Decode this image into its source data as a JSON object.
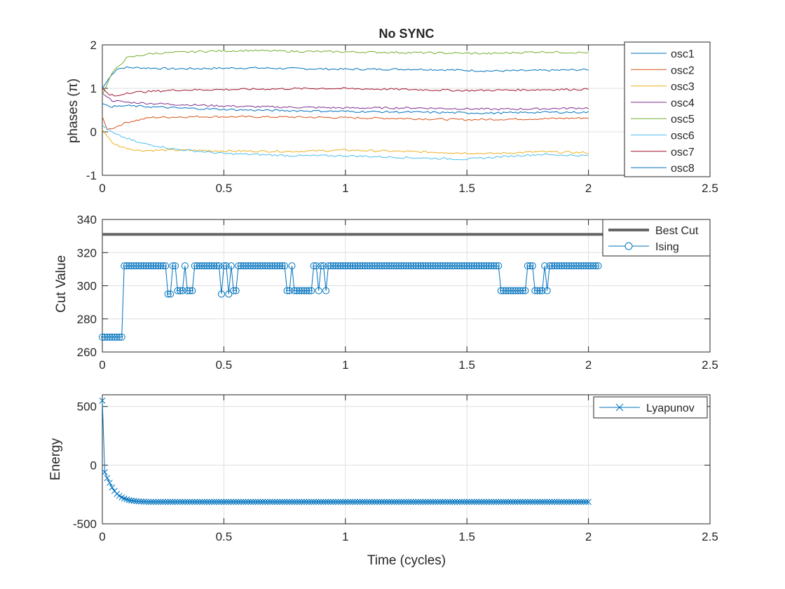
{
  "chart_data": [
    {
      "type": "line",
      "title": "No SYNC",
      "xlabel": "",
      "ylabel": "phases (π)",
      "xlim": [
        0,
        2.5
      ],
      "ylim": [
        -1,
        2
      ],
      "xticks": [
        "0",
        "0.5",
        "1",
        "1.5",
        "2",
        "2.5"
      ],
      "yticks": [
        "-1",
        "0",
        "1",
        "2"
      ],
      "grid": true,
      "legend_position": "top-right outside",
      "series": [
        {
          "name": "osc1",
          "color": "#0072BD",
          "points": [
            [
              0,
              1.0
            ],
            [
              0.03,
              1.25
            ],
            [
              0.06,
              1.45
            ],
            [
              0.1,
              1.48
            ],
            [
              0.3,
              1.45
            ],
            [
              0.6,
              1.47
            ],
            [
              1.0,
              1.44
            ],
            [
              1.3,
              1.44
            ],
            [
              1.6,
              1.4
            ],
            [
              1.8,
              1.41
            ],
            [
              2.0,
              1.43
            ]
          ]
        },
        {
          "name": "osc2",
          "color": "#D95319",
          "points": [
            [
              0,
              0.35
            ],
            [
              0.02,
              0.05
            ],
            [
              0.05,
              0.1
            ],
            [
              0.1,
              0.22
            ],
            [
              0.2,
              0.33
            ],
            [
              0.4,
              0.35
            ],
            [
              0.8,
              0.34
            ],
            [
              1.2,
              0.31
            ],
            [
              1.5,
              0.28
            ],
            [
              1.8,
              0.3
            ],
            [
              2.0,
              0.32
            ]
          ]
        },
        {
          "name": "osc3",
          "color": "#EDB120",
          "points": [
            [
              0,
              0.05
            ],
            [
              0.04,
              -0.25
            ],
            [
              0.08,
              -0.35
            ],
            [
              0.15,
              -0.43
            ],
            [
              0.3,
              -0.42
            ],
            [
              0.5,
              -0.44
            ],
            [
              0.8,
              -0.45
            ],
            [
              1.0,
              -0.42
            ],
            [
              1.3,
              -0.46
            ],
            [
              1.6,
              -0.5
            ],
            [
              1.8,
              -0.46
            ],
            [
              2.0,
              -0.48
            ]
          ]
        },
        {
          "name": "osc4",
          "color": "#7E2F8E",
          "points": [
            [
              0,
              0.88
            ],
            [
              0.04,
              0.72
            ],
            [
              0.1,
              0.68
            ],
            [
              0.3,
              0.63
            ],
            [
              0.6,
              0.58
            ],
            [
              1.0,
              0.55
            ],
            [
              1.3,
              0.55
            ],
            [
              1.6,
              0.52
            ],
            [
              1.8,
              0.53
            ],
            [
              2.0,
              0.55
            ]
          ]
        },
        {
          "name": "osc5",
          "color": "#77AC30",
          "points": [
            [
              0,
              0.85
            ],
            [
              0.04,
              1.35
            ],
            [
              0.1,
              1.7
            ],
            [
              0.2,
              1.8
            ],
            [
              0.4,
              1.85
            ],
            [
              0.6,
              1.87
            ],
            [
              0.8,
              1.85
            ],
            [
              1.0,
              1.84
            ],
            [
              1.3,
              1.82
            ],
            [
              1.6,
              1.8
            ],
            [
              1.8,
              1.84
            ],
            [
              2.0,
              1.82
            ]
          ]
        },
        {
          "name": "osc6",
          "color": "#4DBEEE",
          "points": [
            [
              0,
              0.15
            ],
            [
              0.05,
              -0.05
            ],
            [
              0.15,
              -0.25
            ],
            [
              0.3,
              -0.4
            ],
            [
              0.5,
              -0.5
            ],
            [
              0.8,
              -0.55
            ],
            [
              1.0,
              -0.55
            ],
            [
              1.3,
              -0.6
            ],
            [
              1.5,
              -0.63
            ],
            [
              1.7,
              -0.55
            ],
            [
              1.8,
              -0.52
            ],
            [
              2.0,
              -0.55
            ]
          ]
        },
        {
          "name": "osc7",
          "color": "#A2142F",
          "points": [
            [
              0,
              1.0
            ],
            [
              0.03,
              0.85
            ],
            [
              0.06,
              0.82
            ],
            [
              0.1,
              0.9
            ],
            [
              0.3,
              0.96
            ],
            [
              0.6,
              0.98
            ],
            [
              0.9,
              1.0
            ],
            [
              1.2,
              0.98
            ],
            [
              1.5,
              0.95
            ],
            [
              1.8,
              0.97
            ],
            [
              2.0,
              0.98
            ]
          ]
        },
        {
          "name": "osc8",
          "color": "#0072BD",
          "points": [
            [
              0,
              0.65
            ],
            [
              0.04,
              0.58
            ],
            [
              0.1,
              0.6
            ],
            [
              0.3,
              0.55
            ],
            [
              0.6,
              0.5
            ],
            [
              1.0,
              0.47
            ],
            [
              1.3,
              0.45
            ],
            [
              1.6,
              0.43
            ],
            [
              1.8,
              0.45
            ],
            [
              2.0,
              0.45
            ]
          ]
        }
      ]
    },
    {
      "type": "line",
      "title": "",
      "xlabel": "",
      "ylabel": "Cut Value",
      "xlim": [
        0,
        2.5
      ],
      "ylim": [
        260,
        340
      ],
      "xticks": [
        "0",
        "0.5",
        "1",
        "1.5",
        "2",
        "2.5"
      ],
      "yticks": [
        "260",
        "280",
        "300",
        "320",
        "340"
      ],
      "grid": true,
      "legend_position": "top-right",
      "best_cut": {
        "name": "Best Cut",
        "value": 331,
        "color": "#666666"
      },
      "ising": {
        "name": "Ising",
        "color": "#0072BD",
        "x_start": 0,
        "x_step": 0.01,
        "values": [
          269,
          269,
          269,
          269,
          269,
          269,
          269,
          269,
          269,
          312,
          312,
          312,
          312,
          312,
          312,
          312,
          312,
          312,
          312,
          312,
          312,
          312,
          312,
          312,
          312,
          312,
          312,
          295,
          295,
          312,
          312,
          297,
          297,
          297,
          312,
          297,
          297,
          297,
          312,
          312,
          312,
          312,
          312,
          312,
          312,
          312,
          312,
          312,
          312,
          295,
          312,
          312,
          295,
          312,
          297,
          297,
          312,
          312,
          312,
          312,
          312,
          312,
          312,
          312,
          312,
          312,
          312,
          312,
          312,
          312,
          312,
          312,
          312,
          312,
          312,
          312,
          297,
          297,
          312,
          297,
          297,
          297,
          297,
          297,
          297,
          297,
          297,
          312,
          312,
          297,
          312,
          312,
          297,
          312,
          312,
          312,
          312,
          312,
          312,
          312,
          312,
          312,
          312,
          312,
          312,
          312,
          312,
          312,
          312,
          312,
          312,
          312,
          312,
          312,
          312,
          312,
          312,
          312,
          312,
          312,
          312,
          312,
          312,
          312,
          312,
          312,
          312,
          312,
          312,
          312,
          312,
          312,
          312,
          312,
          312,
          312,
          312,
          312,
          312,
          312,
          312,
          312,
          312,
          312,
          312,
          312,
          312,
          312,
          312,
          312,
          312,
          312,
          312,
          312,
          312,
          312,
          312,
          312,
          312,
          312,
          312,
          312,
          312,
          312,
          297,
          297,
          297,
          297,
          297,
          297,
          297,
          297,
          297,
          297,
          297,
          312,
          312,
          312,
          297,
          297,
          297,
          297,
          312,
          297,
          312,
          312,
          312,
          312,
          312,
          312,
          312,
          312,
          312,
          312,
          312,
          312,
          312,
          312,
          312,
          312,
          312,
          312,
          312,
          312,
          312
        ]
      }
    },
    {
      "type": "line",
      "title": "",
      "xlabel": "Time (cycles)",
      "ylabel": "Energy",
      "xlim": [
        0,
        2.5
      ],
      "ylim": [
        -500,
        600
      ],
      "xticks": [
        "0",
        "0.5",
        "1",
        "1.5",
        "2",
        "2.5"
      ],
      "yticks": [
        "-500",
        "0",
        "500"
      ],
      "grid": true,
      "legend_position": "top-right",
      "lyapunov": {
        "name": "Lyapunov",
        "color": "#0072BD",
        "x_start": 0,
        "x_step": 0.01,
        "first_values": [
          550,
          -60,
          -110,
          -150,
          -190,
          -220,
          -245,
          -262,
          -275,
          -285,
          -292,
          -298,
          -302,
          -305,
          -307,
          -309,
          -310,
          -311,
          -312,
          -313
        ],
        "steady_value": -313,
        "count": 201
      }
    }
  ]
}
